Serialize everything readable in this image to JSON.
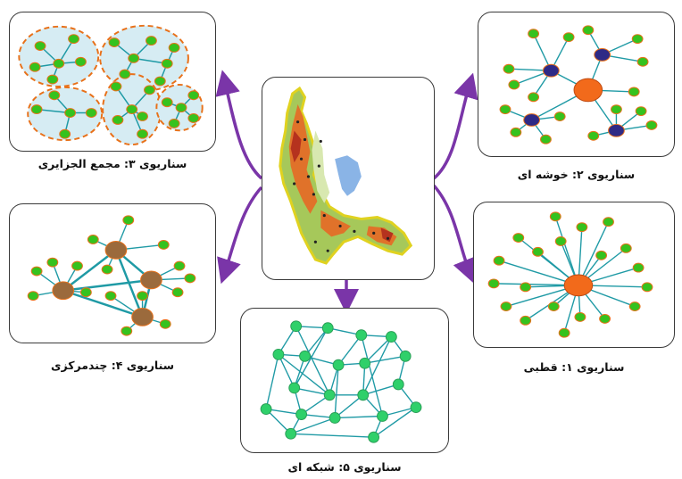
{
  "colors": {
    "node_green": "#35c21e",
    "node_outline": "#e8711a",
    "edge_teal": "#1f9aa5",
    "cluster_fill": "#d6ecf3",
    "cluster_border": "#e8711a",
    "hub_orange": "#f26a1b",
    "hub_navy": "#2e2a86",
    "hub_brown": "#9b6a3c",
    "mesh_node": "#2fd06a",
    "arrow_purple": "#7a35a8",
    "map_border": "#e0d21f",
    "lake_blue": "#8ab4e6"
  },
  "scenarios": {
    "s1": {
      "label": "سناریوی ۱: قطبی"
    },
    "s2": {
      "label": "سناریوی ۲: خوشه ای"
    },
    "s3": {
      "label": "سناریوی ۳: مجمع الجزایری"
    },
    "s4": {
      "label": "سناریوی ۴: چندمرکزی"
    },
    "s5": {
      "label": "سناریوی ۵: شبکه ای"
    }
  }
}
